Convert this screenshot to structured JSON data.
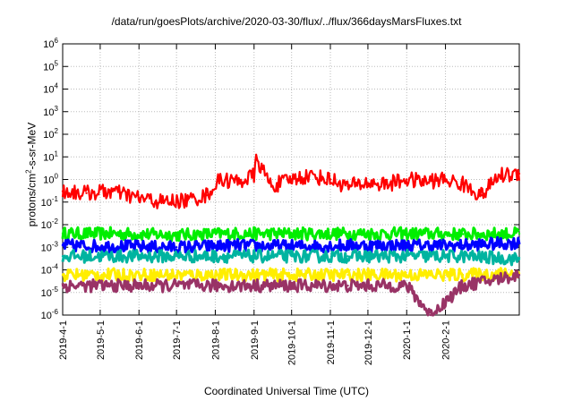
{
  "chart_data": {
    "type": "line",
    "title": "/data/run/goesPlots/archive/2020-03-30/flux/../flux/366daysMarsFluxes.txt",
    "xlabel": "Coordinated Universal Time (UTC)",
    "ylabel_main": "protons/cm",
    "ylabel_sup": "2",
    "ylabel_rest": "-s-sr-MeV",
    "y_scale": "log",
    "ylim": [
      1e-06,
      1000000.0
    ],
    "y_tick_exponents": [
      "-6",
      "-5",
      "-4",
      "-3",
      "-2",
      "-1",
      "0",
      "1",
      "2",
      "3",
      "4",
      "5",
      "6"
    ],
    "y_tick_base": "10",
    "x_start": "2019-04-01",
    "x_end": "2020-03-31",
    "x_tick_labels": [
      "2019-4-1",
      "2019-5-1",
      "2019-6-1",
      "2019-7-1",
      "2019-8-1",
      "2019-9-1",
      "2019-10-1",
      "2019-11-1",
      "2019-12-1",
      "2020-1-1",
      "2020-2-1"
    ],
    "x_tick_dates": [
      "2019-04-01",
      "2019-05-01",
      "2019-06-01",
      "2019-07-01",
      "2019-08-01",
      "2019-09-01",
      "2019-10-01",
      "2019-11-01",
      "2019-12-01",
      "2020-01-01",
      "2020-02-01"
    ],
    "grid": true,
    "legend": "none",
    "series": [
      {
        "color": "#00ee00",
        "x": [
          "2019-04-01",
          "2019-05-15",
          "2019-07-01",
          "2019-08-15",
          "2019-10-01",
          "2019-11-15",
          "2020-01-01",
          "2020-02-15",
          "2020-03-31"
        ],
        "y": [
          0.004,
          0.004,
          0.0035,
          0.004,
          0.004,
          0.004,
          0.004,
          0.0038,
          0.004
        ]
      },
      {
        "color": "#0000ff",
        "x": [
          "2019-04-01",
          "2019-05-15",
          "2019-07-01",
          "2019-08-15",
          "2019-10-01",
          "2019-11-15",
          "2020-01-01",
          "2020-02-15",
          "2020-03-31"
        ],
        "y": [
          0.0012,
          0.0011,
          0.001,
          0.0012,
          0.0011,
          0.0012,
          0.0012,
          0.0012,
          0.0016
        ]
      },
      {
        "color": "#00b4a0",
        "x": [
          "2019-04-01",
          "2019-05-15",
          "2019-07-01",
          "2019-08-15",
          "2019-10-01",
          "2019-11-15",
          "2020-01-01",
          "2020-02-15",
          "2020-03-31"
        ],
        "y": [
          0.0004,
          0.0004,
          0.0004,
          0.0004,
          0.0004,
          0.0004,
          0.0004,
          0.0004,
          0.0003
        ]
      },
      {
        "color": "#ffee00",
        "x": [
          "2019-04-01",
          "2019-05-15",
          "2019-07-01",
          "2019-08-15",
          "2019-10-01",
          "2019-11-15",
          "2020-01-01",
          "2020-02-15",
          "2020-03-31"
        ],
        "y": [
          6e-05,
          6e-05,
          6e-05,
          6e-05,
          6e-05,
          6e-05,
          6e-05,
          6e-05,
          7e-05
        ]
      },
      {
        "color": "#993366",
        "x": [
          "2019-04-01",
          "2019-05-15",
          "2019-07-01",
          "2019-08-15",
          "2019-10-01",
          "2019-11-15",
          "2020-01-01",
          "2020-01-20",
          "2020-02-15",
          "2020-03-31"
        ],
        "y": [
          2e-05,
          2e-05,
          2e-05,
          2e-05,
          2e-05,
          2e-05,
          2e-05,
          1e-06,
          2e-05,
          6e-05
        ]
      },
      {
        "color": "#ff0000",
        "x": [
          "2019-04-01",
          "2019-04-20",
          "2019-05-10",
          "2019-06-01",
          "2019-06-20",
          "2019-07-10",
          "2019-07-25",
          "2019-08-05",
          "2019-08-20",
          "2019-09-01",
          "2019-09-03",
          "2019-09-15",
          "2019-10-01",
          "2019-10-15",
          "2019-11-01",
          "2019-11-15",
          "2019-12-01",
          "2019-12-15",
          "2020-01-01",
          "2020-01-15",
          "2020-02-01",
          "2020-02-15",
          "2020-03-01",
          "2020-03-15",
          "2020-03-31"
        ],
        "y": [
          0.3,
          0.25,
          0.3,
          0.15,
          0.1,
          0.12,
          0.2,
          1.0,
          0.8,
          1.5,
          8.0,
          0.5,
          1.0,
          1.5,
          1.0,
          0.5,
          0.7,
          0.6,
          1.0,
          0.8,
          1.0,
          0.6,
          0.2,
          1.5,
          1.8
        ]
      }
    ]
  }
}
